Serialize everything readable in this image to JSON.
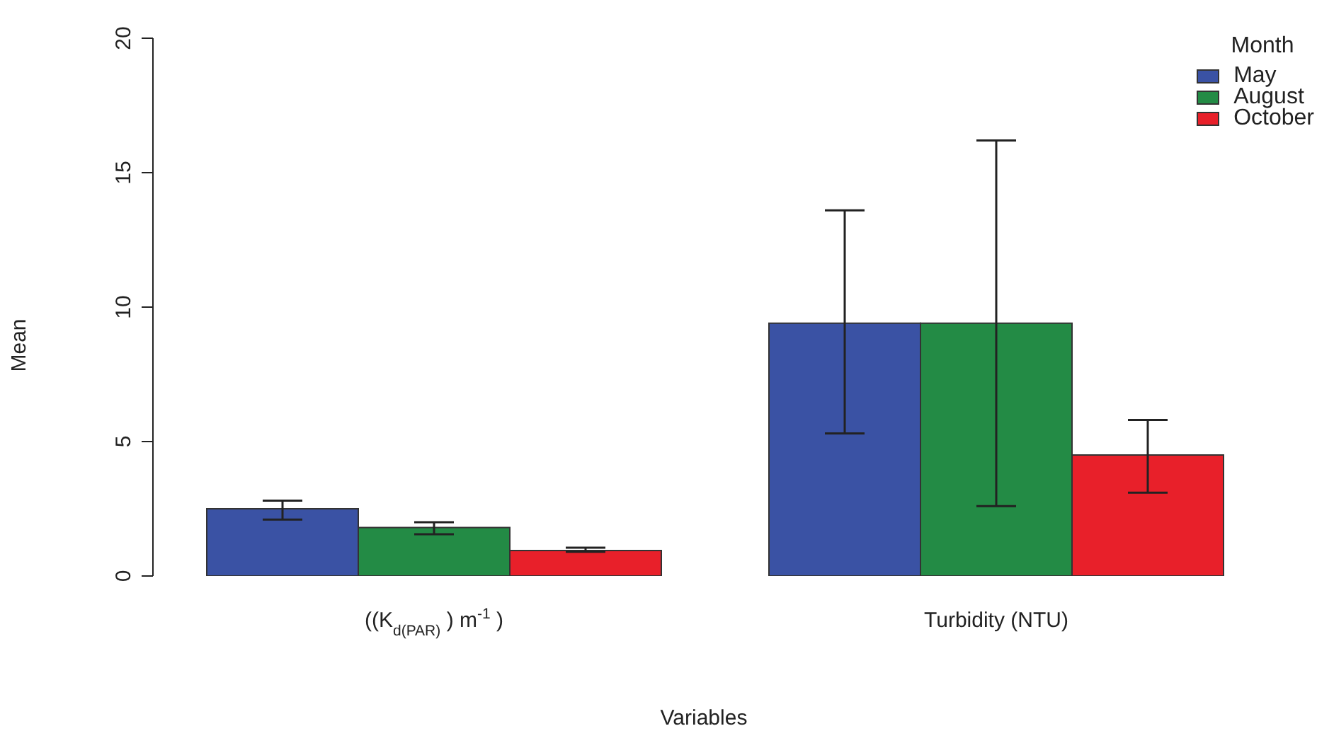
{
  "chart_data": {
    "type": "bar",
    "xlabel": "Variables",
    "ylabel": "Mean",
    "legend_title": "Month",
    "legend": "top right",
    "categories": [
      "((K$_{d(PAR)}$) m$^{-1}$)",
      "Turbidity (NTU)"
    ],
    "series": [
      {
        "name": "May",
        "color": "#3a52a4",
        "values": [
          2.5,
          9.4
        ],
        "errors": [
          [
            2.1,
            2.8
          ],
          [
            5.3,
            13.6
          ]
        ]
      },
      {
        "name": "August",
        "color": "#238b45",
        "values": [
          1.8,
          9.4
        ],
        "errors": [
          [
            1.55,
            2.0
          ],
          [
            2.6,
            16.2
          ]
        ]
      },
      {
        "name": "October",
        "color": "#e8202a",
        "values": [
          0.95,
          4.5
        ],
        "errors": [
          [
            0.9,
            1.05
          ],
          [
            3.1,
            5.8
          ]
        ]
      }
    ],
    "ylim": [
      0,
      20
    ],
    "yticks": [
      0,
      5,
      10,
      15,
      20
    ],
    "grid": false
  }
}
